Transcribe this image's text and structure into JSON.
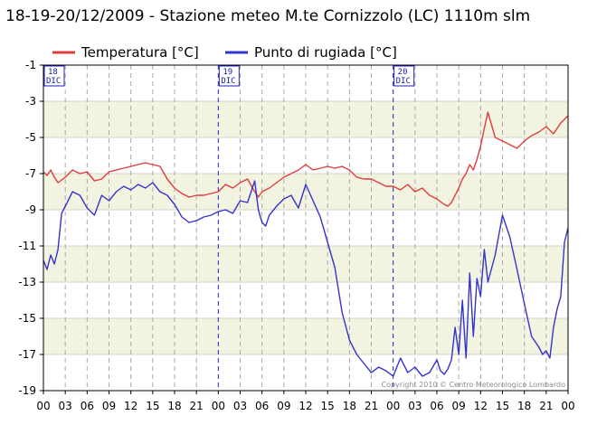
{
  "chart_data": {
    "type": "line",
    "title": "18-19-20/12/2009 - Stazione meteo M.te Cornizzolo (LC) 1110m slm",
    "copyright": "Copyright 2010 © Centro Meteorologico Lombardo",
    "ylim": [
      -19,
      -1
    ],
    "yticks": [
      -1,
      -3,
      -5,
      -7,
      -9,
      -11,
      -13,
      -15,
      -17,
      -19
    ],
    "xlim": [
      0,
      72
    ],
    "xticks": [
      {
        "h": 0,
        "label": "00"
      },
      {
        "h": 3,
        "label": "03"
      },
      {
        "h": 6,
        "label": "06"
      },
      {
        "h": 9,
        "label": "09"
      },
      {
        "h": 12,
        "label": "12"
      },
      {
        "h": 15,
        "label": "15"
      },
      {
        "h": 18,
        "label": "18"
      },
      {
        "h": 21,
        "label": "21"
      },
      {
        "h": 24,
        "label": "00"
      },
      {
        "h": 27,
        "label": "03"
      },
      {
        "h": 30,
        "label": "06"
      },
      {
        "h": 33,
        "label": "09"
      },
      {
        "h": 36,
        "label": "12"
      },
      {
        "h": 39,
        "label": "15"
      },
      {
        "h": 42,
        "label": "18"
      },
      {
        "h": 45,
        "label": "21"
      },
      {
        "h": 48,
        "label": "00"
      },
      {
        "h": 51,
        "label": "03"
      },
      {
        "h": 54,
        "label": "06"
      },
      {
        "h": 57,
        "label": "09"
      },
      {
        "h": 60,
        "label": "12"
      },
      {
        "h": 63,
        "label": "15"
      },
      {
        "h": 66,
        "label": "18"
      },
      {
        "h": 69,
        "label": "21"
      },
      {
        "h": 72,
        "label": "00"
      }
    ],
    "day_markers": [
      {
        "h": 0,
        "day": "18",
        "month": "DIC"
      },
      {
        "h": 24,
        "day": "19",
        "month": "DIC"
      },
      {
        "h": 48,
        "day": "20",
        "month": "DIC"
      }
    ],
    "grid": true,
    "legend_position": "top-left",
    "series": [
      {
        "name": "Temperatura [°C]",
        "color": "#e03c3c",
        "x": [
          0,
          0.5,
          1,
          1.5,
          2,
          3,
          4,
          5,
          6,
          7,
          8,
          9,
          10,
          11,
          12,
          13,
          14,
          15,
          16,
          17,
          18,
          19,
          20,
          21,
          22,
          23,
          24,
          25,
          26,
          27,
          28,
          29,
          29.5,
          30,
          31,
          32,
          33,
          34,
          35,
          36,
          37,
          38,
          39,
          40,
          41,
          42,
          43,
          44,
          45,
          46,
          47,
          48,
          49,
          50,
          51,
          52,
          53,
          54,
          55,
          55.5,
          56,
          56.5,
          57,
          57.5,
          58,
          58.5,
          59,
          59.5,
          60,
          60.5,
          61,
          62,
          63,
          64,
          65,
          66,
          67,
          68,
          69,
          70,
          71,
          72
        ],
        "y": [
          -6.9,
          -7.1,
          -6.8,
          -7.2,
          -7.5,
          -7.2,
          -6.8,
          -7.0,
          -6.9,
          -7.4,
          -7.3,
          -6.9,
          -6.8,
          -6.7,
          -6.6,
          -6.5,
          -6.4,
          -6.5,
          -6.6,
          -7.3,
          -7.8,
          -8.1,
          -8.3,
          -8.2,
          -8.2,
          -8.1,
          -8.0,
          -7.6,
          -7.8,
          -7.5,
          -7.3,
          -8.0,
          -8.3,
          -8.0,
          -7.8,
          -7.5,
          -7.2,
          -7.0,
          -6.8,
          -6.5,
          -6.8,
          -6.7,
          -6.6,
          -6.7,
          -6.6,
          -6.8,
          -7.2,
          -7.3,
          -7.3,
          -7.5,
          -7.7,
          -7.7,
          -7.9,
          -7.6,
          -8.0,
          -7.8,
          -8.2,
          -8.4,
          -8.7,
          -8.8,
          -8.6,
          -8.2,
          -7.8,
          -7.3,
          -7.0,
          -6.5,
          -6.8,
          -6.2,
          -5.5,
          -4.5,
          -3.6,
          -5.0,
          -5.2,
          -5.4,
          -5.6,
          -5.2,
          -4.9,
          -4.7,
          -4.4,
          -4.8,
          -4.2,
          -3.8
        ]
      },
      {
        "name": "Punto di rugiada [°C]",
        "color": "#3434cc",
        "x": [
          0,
          0.5,
          1,
          1.5,
          2,
          2.5,
          3,
          4,
          5,
          6,
          7,
          8,
          9,
          10,
          11,
          12,
          13,
          14,
          15,
          16,
          17,
          18,
          19,
          20,
          21,
          22,
          23,
          24,
          25,
          26,
          27,
          28,
          29,
          29.5,
          30,
          30.5,
          31,
          32,
          33,
          34,
          35,
          36,
          37,
          38,
          39,
          40,
          41,
          42,
          43,
          44,
          45,
          46,
          47,
          48,
          49,
          50,
          51,
          52,
          53,
          54,
          54.5,
          55,
          55.5,
          56,
          56.5,
          57,
          57.5,
          58,
          58.5,
          59,
          59.5,
          60,
          60.5,
          61,
          62,
          63,
          64,
          65,
          66,
          67,
          68,
          68.5,
          69,
          69.5,
          70,
          70.5,
          71,
          71.5,
          72
        ],
        "y": [
          -11.8,
          -12.3,
          -11.5,
          -12.0,
          -11.2,
          -9.2,
          -8.8,
          -8.0,
          -8.2,
          -8.9,
          -9.3,
          -8.2,
          -8.5,
          -8.0,
          -7.7,
          -7.9,
          -7.6,
          -7.8,
          -7.5,
          -8.0,
          -8.2,
          -8.7,
          -9.4,
          -9.7,
          -9.6,
          -9.4,
          -9.3,
          -9.1,
          -9.0,
          -9.2,
          -8.5,
          -8.6,
          -7.4,
          -9.0,
          -9.7,
          -9.9,
          -9.3,
          -8.8,
          -8.4,
          -8.2,
          -8.9,
          -7.6,
          -8.5,
          -9.4,
          -10.8,
          -12.2,
          -14.7,
          -16.2,
          -17.0,
          -17.5,
          -18.0,
          -17.7,
          -17.9,
          -18.2,
          -17.2,
          -18.0,
          -17.7,
          -18.2,
          -18.0,
          -17.3,
          -17.9,
          -18.1,
          -17.8,
          -17.3,
          -15.5,
          -17.0,
          -14.0,
          -17.2,
          -12.5,
          -16.0,
          -12.8,
          -13.8,
          -11.2,
          -13.0,
          -11.5,
          -9.3,
          -10.5,
          -12.3,
          -14.2,
          -16.0,
          -16.6,
          -17.0,
          -16.8,
          -17.2,
          -15.5,
          -14.5,
          -13.8,
          -10.8,
          -10.0
        ]
      }
    ]
  }
}
